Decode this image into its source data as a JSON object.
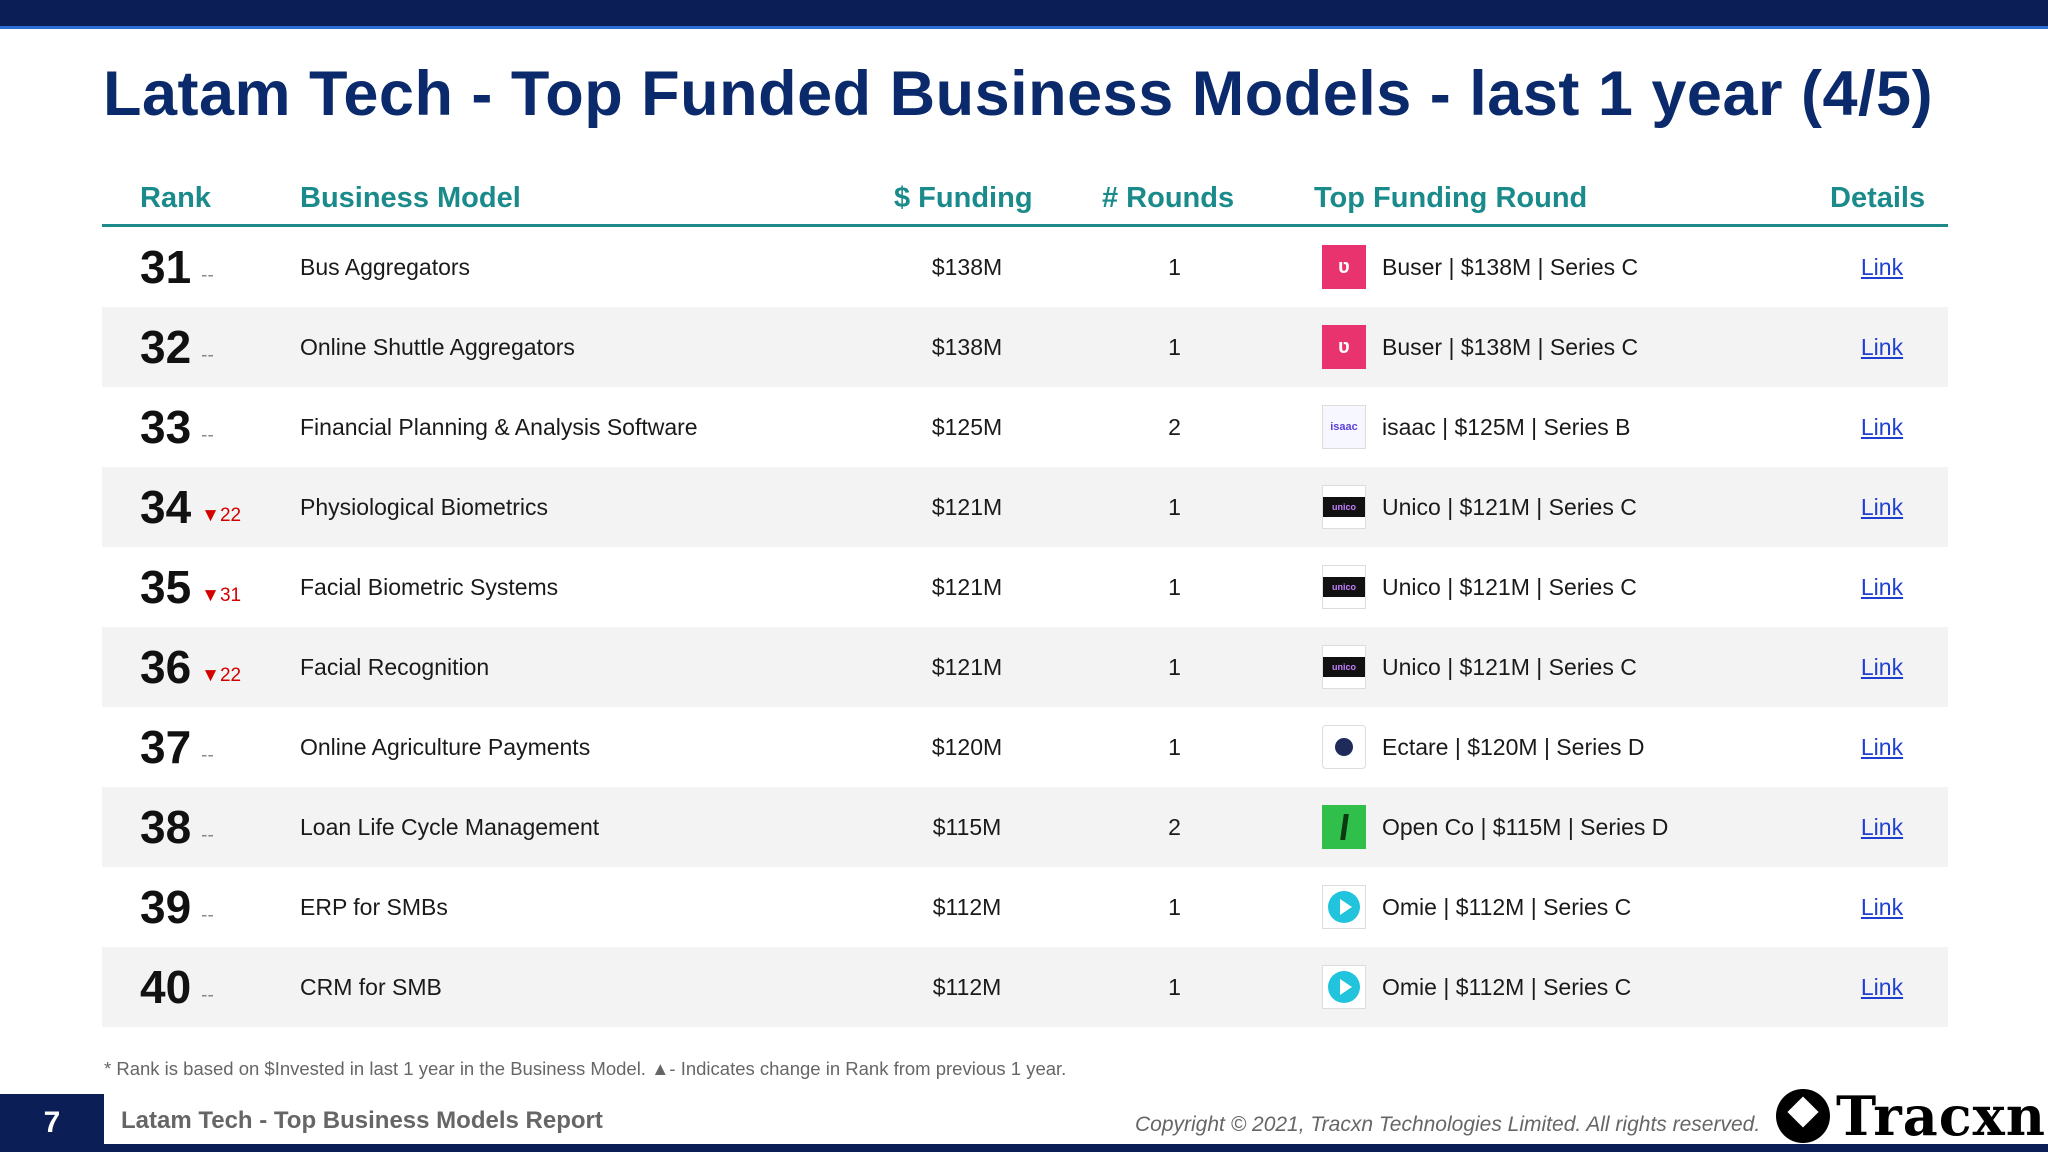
{
  "title": "Latam Tech - Top Funded Business Models - last 1 year (4/5)",
  "table": {
    "headers": {
      "rank": "Rank",
      "business_model": "Business Model",
      "funding": "$ Funding",
      "rounds": "# Rounds",
      "top_round": "Top Funding Round",
      "details": "Details"
    },
    "rows": [
      {
        "rank": "31",
        "change": "--",
        "change_dir": "none",
        "model": "Bus Aggregators",
        "funding": "$138M",
        "rounds": "1",
        "logo": "buser-logo",
        "top_round": "Buser | $138M | Series C",
        "details": "Link"
      },
      {
        "rank": "32",
        "change": "--",
        "change_dir": "none",
        "model": "Online Shuttle Aggregators",
        "funding": "$138M",
        "rounds": "1",
        "logo": "buser-logo",
        "top_round": "Buser | $138M | Series C",
        "details": "Link"
      },
      {
        "rank": "33",
        "change": "--",
        "change_dir": "none",
        "model": "Financial Planning & Analysis Software",
        "funding": "$125M",
        "rounds": "2",
        "logo": "isaac-logo",
        "top_round": "isaac | $125M | Series B",
        "details": "Link"
      },
      {
        "rank": "34",
        "change": "▼22",
        "change_dir": "down",
        "model": "Physiological Biometrics",
        "funding": "$121M",
        "rounds": "1",
        "logo": "unico-logo",
        "top_round": "Unico | $121M | Series C",
        "details": "Link"
      },
      {
        "rank": "35",
        "change": "▼31",
        "change_dir": "down",
        "model": "Facial Biometric Systems",
        "funding": "$121M",
        "rounds": "1",
        "logo": "unico-logo",
        "top_round": "Unico | $121M | Series C",
        "details": "Link"
      },
      {
        "rank": "36",
        "change": "▼22",
        "change_dir": "down",
        "model": "Facial Recognition",
        "funding": "$121M",
        "rounds": "1",
        "logo": "unico-logo",
        "top_round": "Unico | $121M | Series C",
        "details": "Link"
      },
      {
        "rank": "37",
        "change": "--",
        "change_dir": "none",
        "model": "Online Agriculture Payments",
        "funding": "$120M",
        "rounds": "1",
        "logo": "ectare-logo",
        "top_round": "Ectare | $120M | Series D",
        "details": "Link"
      },
      {
        "rank": "38",
        "change": "--",
        "change_dir": "none",
        "model": "Loan Life Cycle Management",
        "funding": "$115M",
        "rounds": "2",
        "logo": "openco-logo",
        "top_round": "Open Co | $115M | Series D",
        "details": "Link"
      },
      {
        "rank": "39",
        "change": "--",
        "change_dir": "none",
        "model": "ERP for SMBs",
        "funding": "$112M",
        "rounds": "1",
        "logo": "omie-logo",
        "top_round": "Omie | $112M | Series C",
        "details": "Link"
      },
      {
        "rank": "40",
        "change": "--",
        "change_dir": "none",
        "model": "CRM for SMB",
        "funding": "$112M",
        "rounds": "1",
        "logo": "omie-logo",
        "top_round": "Omie | $112M | Series C",
        "details": "Link"
      }
    ]
  },
  "footnote": "*  Rank is based on $Invested in last 1 year in the Business Model.  ▲- Indicates change in Rank from previous 1 year.",
  "footer": {
    "page_number": "7",
    "report_title": "Latam Tech - Top Business Models Report",
    "copyright": "Copyright © 2021, Tracxn Technologies Limited. All rights reserved.",
    "brand": "Tracxn"
  },
  "logo_text": {
    "buser": "ʋ",
    "isaac": "isaac",
    "unico": "unico"
  },
  "colors": {
    "navy": "#0b1f56",
    "title": "#0b2a6b",
    "header_teal": "#1a8a8a",
    "down_red": "#d40000",
    "link_blue": "#1f3fd0"
  }
}
